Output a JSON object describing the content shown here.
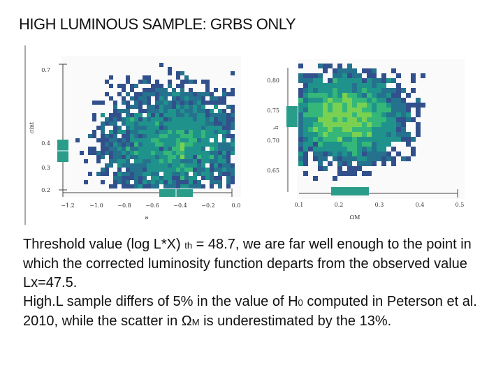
{
  "title": "HIGH LUMINOUS SAMPLE: GRBS ONLY",
  "plots": [
    {
      "ylabel": "σint",
      "xlabel": "a",
      "yticks": [
        "0.7",
        "0.4",
        "0.3",
        "0.2"
      ],
      "xticks": [
        "−1.2",
        "−1.0",
        "−0.8",
        "−0.6",
        "−0.4",
        "−0.2",
        "0.0"
      ]
    },
    {
      "ylabel": "h",
      "xlabel": "ΩM",
      "yticks": [
        "0.80",
        "0.75",
        "0.70",
        "0.65"
      ],
      "xticks": [
        "0.1",
        "0.2",
        "0.3",
        "0.4",
        "0.5"
      ]
    }
  ],
  "body": {
    "p1": [
      "Threshold value (log L",
      "*X)",
      "th",
      " = 48.7, we are far well enough to the point in which the corrected luminosity function departs from the observed value Lx=47.5."
    ],
    "p2": [
      "High.L sample differs of 5% in the value of H",
      "0",
      " computed in Peterson et al. 2010, while the scatter in Ω",
      "M",
      " is underestimated by the 13%."
    ]
  }
}
